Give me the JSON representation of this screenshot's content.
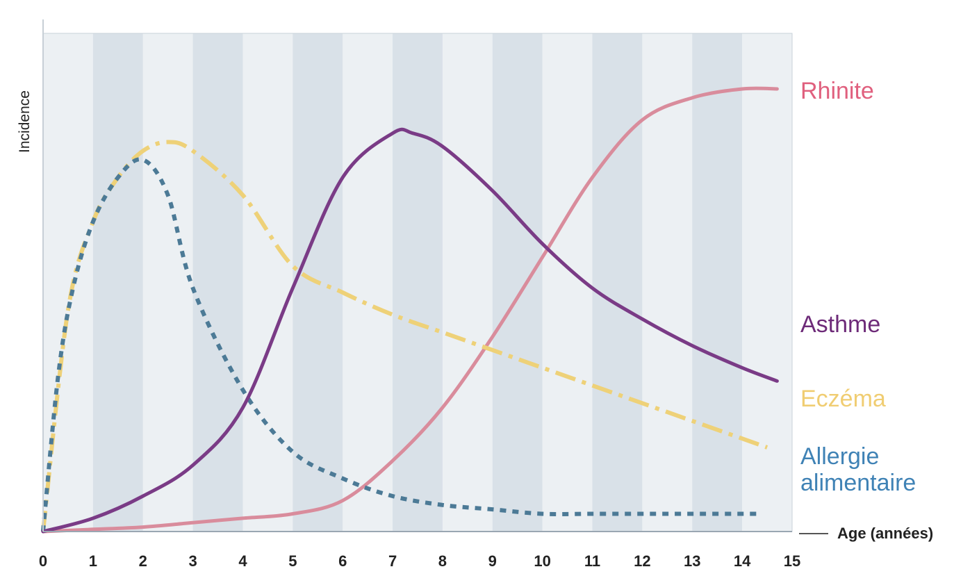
{
  "chart_data": {
    "type": "line",
    "title": "",
    "ylabel": "Incidence",
    "xlabel": "Age (années)",
    "xlim": [
      0,
      15
    ],
    "ylim": [
      0,
      100
    ],
    "x_ticks": [
      "0",
      "1",
      "2",
      "3",
      "4",
      "5",
      "6",
      "7",
      "8",
      "9",
      "10",
      "11",
      "12",
      "13",
      "14",
      "15"
    ],
    "grid": "alternating vertical bands",
    "legend_placement": "right, labels at series ends",
    "series": [
      {
        "name": "Rhinite",
        "color": "#e0607e",
        "line_color": "#d98c9c",
        "style": "solid",
        "x": [
          0,
          1,
          2,
          3,
          4,
          5,
          6,
          7,
          8,
          9,
          10,
          11,
          12,
          13,
          14,
          14.7
        ],
        "y": [
          0,
          0.5,
          1,
          2,
          3,
          4,
          7,
          16,
          28,
          44,
          62,
          80,
          93,
          98,
          100,
          100
        ]
      },
      {
        "name": "Asthme",
        "color": "#6d2a78",
        "line_color": "#7a3b86",
        "style": "solid",
        "x": [
          0,
          1,
          2,
          3,
          4,
          5,
          6,
          7,
          7.4,
          8,
          9,
          10,
          11,
          12,
          13,
          14,
          14.7
        ],
        "y": [
          0,
          3,
          8,
          15,
          28,
          55,
          80,
          90,
          90,
          87,
          77,
          65,
          55,
          48,
          42,
          37,
          34
        ]
      },
      {
        "name": "Eczéma",
        "color": "#f0cd72",
        "line_color": "#eed178",
        "style": "dash-dot",
        "x": [
          0,
          0.5,
          1,
          1.5,
          2,
          2.5,
          3,
          4,
          5,
          6,
          7,
          8,
          9,
          10,
          11,
          12,
          13,
          14,
          14.5
        ],
        "y": [
          0,
          50,
          70,
          80,
          86,
          88,
          86,
          76,
          60,
          54,
          49,
          45,
          41,
          37,
          33,
          29,
          25,
          21,
          19
        ]
      },
      {
        "name": "Allergie alimentaire",
        "color": "#3f82b5",
        "line_color": "#4c7a96",
        "style": "dashed",
        "x": [
          0,
          0.3,
          0.6,
          1,
          1.5,
          2,
          2.5,
          3,
          4,
          5,
          6,
          7,
          8,
          9,
          10,
          11,
          12,
          13,
          14.3
        ],
        "y": [
          0,
          35,
          55,
          70,
          80,
          84,
          76,
          55,
          32,
          18,
          12,
          8,
          6,
          5,
          4,
          4,
          4,
          4,
          4
        ]
      }
    ]
  }
}
